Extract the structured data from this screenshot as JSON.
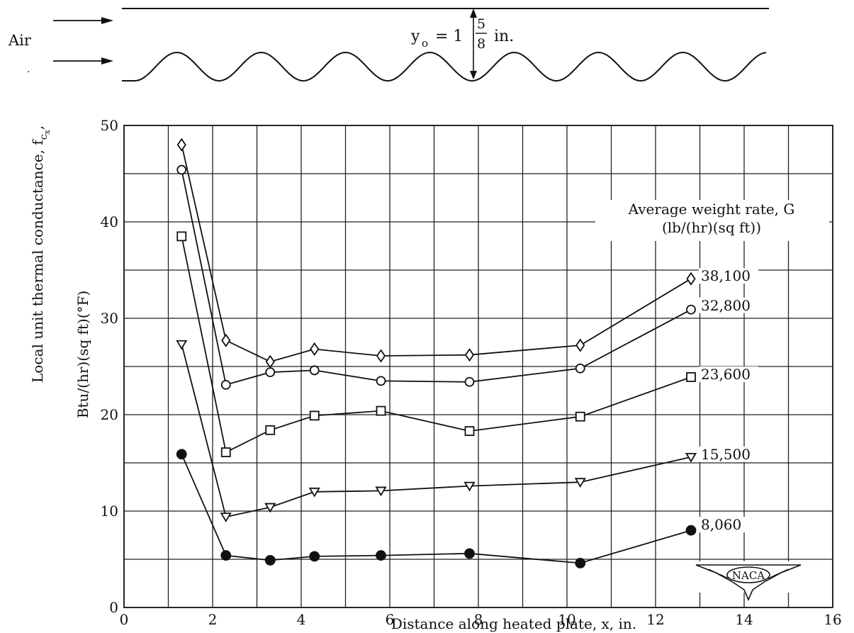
{
  "diagram": {
    "flow_label": "Air",
    "offset_symbol": "y",
    "offset_subscript": "o",
    "offset_eq": "= 1",
    "offset_num": "5",
    "offset_den": "8",
    "offset_unit": "in."
  },
  "legend": {
    "title_line1": "Average weight rate, G",
    "title_line2": "(lb/(hr)(sq ft))"
  },
  "logo_text": "NACA",
  "chart_data": {
    "type": "line",
    "title": "",
    "xlabel": "Distance along heated plate, x, in.",
    "ylabel_line1": "Local unit thermal conductance, f",
    "ylabel_sub": "c",
    "ylabel_subsub": "x",
    "ylabel_tail": ",",
    "ylabel_line2": "Btu/(hr)(sq ft)(°F)",
    "xlim": [
      0,
      16
    ],
    "ylim": [
      0,
      50
    ],
    "xticks": [
      0,
      2,
      4,
      6,
      8,
      10,
      12,
      14,
      16
    ],
    "xtick_labels": [
      "0",
      "2",
      "4",
      "6",
      "8",
      "10",
      "12",
      "14",
      "16"
    ],
    "yticks": [
      0,
      10,
      20,
      30,
      40,
      50
    ],
    "ytick_labels": [
      "0",
      "10",
      "20",
      "30",
      "40",
      "50"
    ],
    "grid": true,
    "legend_position": "right",
    "series": [
      {
        "name": "38,100",
        "marker": "diamond",
        "x": [
          1.3,
          2.3,
          3.3,
          4.3,
          5.8,
          7.8,
          10.3,
          12.8
        ],
        "y": [
          48.0,
          27.7,
          25.5,
          26.8,
          26.1,
          26.2,
          27.2,
          34.1
        ]
      },
      {
        "name": "32,800",
        "marker": "circle-open",
        "x": [
          1.3,
          2.3,
          3.3,
          4.3,
          5.8,
          7.8,
          10.3,
          12.8
        ],
        "y": [
          45.4,
          23.1,
          24.4,
          24.6,
          23.5,
          23.4,
          24.8,
          30.9
        ]
      },
      {
        "name": "23,600",
        "marker": "square",
        "x": [
          1.3,
          2.3,
          3.3,
          4.3,
          5.8,
          7.8,
          10.3,
          12.8
        ],
        "y": [
          38.5,
          16.1,
          18.4,
          19.9,
          20.4,
          18.3,
          19.8,
          23.9
        ]
      },
      {
        "name": "15,500",
        "marker": "triangle-down",
        "x": [
          1.3,
          2.3,
          3.3,
          4.3,
          5.8,
          7.8,
          10.3,
          12.8
        ],
        "y": [
          27.3,
          9.4,
          10.4,
          12.0,
          12.1,
          12.6,
          13.0,
          15.6
        ]
      },
      {
        "name": "8,060",
        "marker": "circle-filled",
        "x": [
          1.3,
          2.3,
          3.3,
          4.3,
          5.8,
          7.8,
          10.3,
          12.8
        ],
        "y": [
          15.9,
          5.4,
          4.9,
          5.3,
          5.4,
          5.6,
          4.6,
          8.0
        ]
      }
    ]
  }
}
